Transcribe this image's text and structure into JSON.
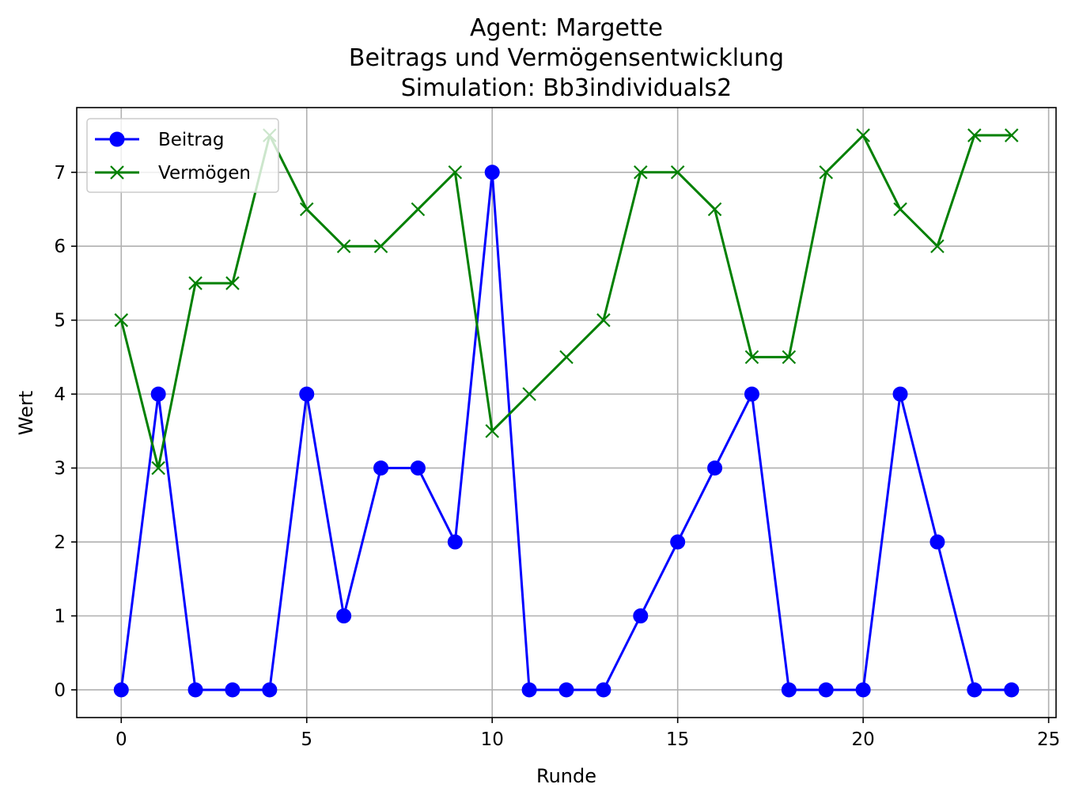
{
  "chart_data": {
    "type": "line",
    "title_lines": [
      "Agent: Margette",
      "Beitrags und Vermögensentwicklung",
      "Simulation: Bb3individuals2"
    ],
    "xlabel": "Runde",
    "ylabel": "Wert",
    "xlim": [
      -1.2,
      25.2
    ],
    "ylim": [
      -0.375,
      7.875
    ],
    "xticks": [
      0,
      5,
      10,
      15,
      20,
      25
    ],
    "yticks": [
      0,
      1,
      2,
      3,
      4,
      5,
      6,
      7
    ],
    "grid": true,
    "legend_position": "top-left",
    "x": [
      0,
      1,
      2,
      3,
      4,
      5,
      6,
      7,
      8,
      9,
      10,
      11,
      12,
      13,
      14,
      15,
      16,
      17,
      18,
      19,
      20,
      21,
      22,
      23,
      24
    ],
    "series": [
      {
        "name": "Beitrag",
        "color": "#0000ff",
        "marker": "circle",
        "values": [
          0,
          4,
          0,
          0,
          0,
          4,
          1,
          3,
          3,
          2,
          7,
          0,
          0,
          0,
          1,
          2,
          3,
          4,
          0,
          0,
          0,
          4,
          2,
          0,
          0
        ]
      },
      {
        "name": "Vermögen",
        "color": "#008000",
        "marker": "x",
        "values": [
          5,
          3,
          5.5,
          5.5,
          7.5,
          6.5,
          6,
          6,
          6.5,
          7,
          3.5,
          4,
          4.5,
          5,
          7,
          7,
          6.5,
          4.5,
          4.5,
          7,
          7.5,
          6.5,
          6,
          7.5,
          7.5
        ]
      }
    ]
  }
}
